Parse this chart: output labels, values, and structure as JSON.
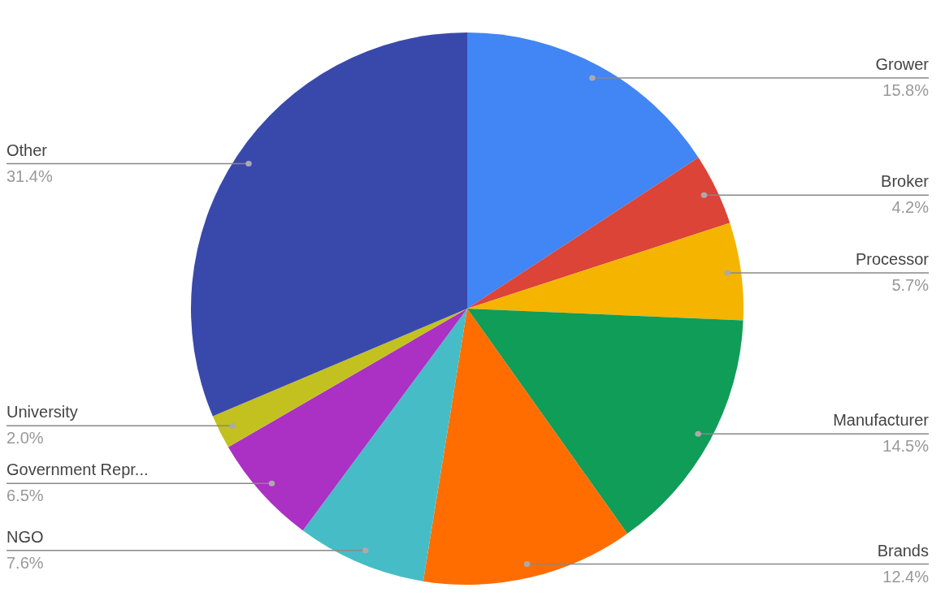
{
  "chart_data": {
    "type": "pie",
    "categories": [
      "Grower",
      "Broker",
      "Processor",
      "Manufacturer",
      "Brands",
      "NGO",
      "Government Repr...",
      "University",
      "Other"
    ],
    "values": [
      15.8,
      4.2,
      5.7,
      14.5,
      12.4,
      7.6,
      6.5,
      2.0,
      31.4
    ],
    "value_labels": [
      "15.8%",
      "4.2%",
      "5.7%",
      "14.5%",
      "12.4%",
      "7.6%",
      "6.5%",
      "2.0%",
      "31.4%"
    ],
    "colors": [
      "#4285f4",
      "#db4437",
      "#f4b400",
      "#0f9d58",
      "#ff6d00",
      "#46bdc6",
      "#ab30c4",
      "#c2c11f",
      "#3949ab"
    ],
    "legend": false
  }
}
